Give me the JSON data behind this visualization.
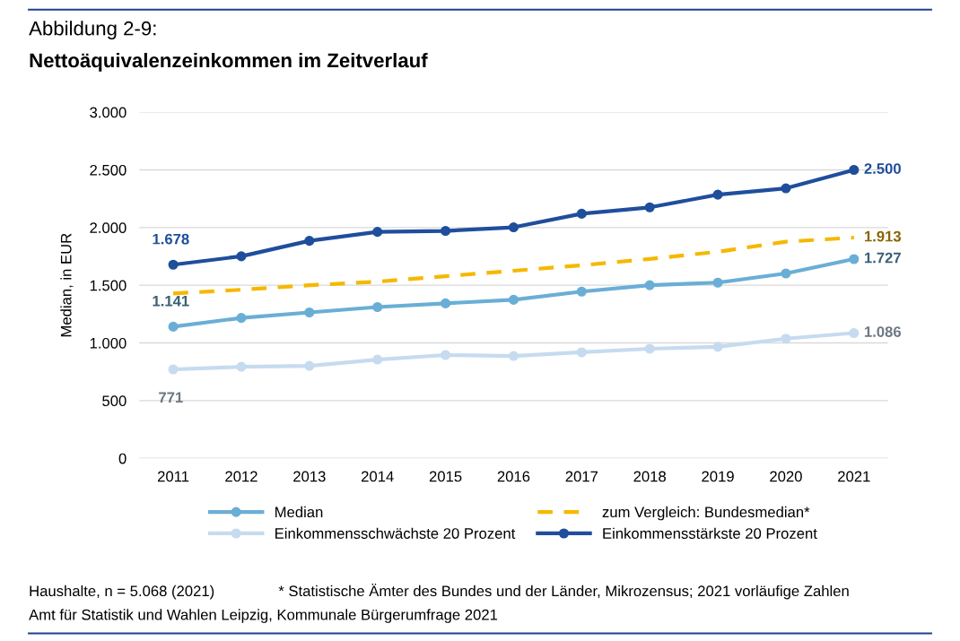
{
  "chart_data": {
    "type": "line",
    "title": "Abbildung 2-9:",
    "subtitle": "Nettoäquivalenzeinkommen im Zeitverlauf",
    "ylabel": "Median, in EUR",
    "categories": [
      "2011",
      "2012",
      "2013",
      "2014",
      "2015",
      "2016",
      "2017",
      "2018",
      "2019",
      "2020",
      "2021"
    ],
    "series": [
      {
        "name": "Median",
        "color": "#6aaed6",
        "marker": "circle",
        "values": [
          1141,
          1217,
          1264,
          1311,
          1343,
          1374,
          1445,
          1500,
          1523,
          1602,
          1727
        ],
        "value_labels": [
          "1.141",
          null,
          null,
          null,
          null,
          null,
          null,
          null,
          null,
          null,
          "1.727"
        ]
      },
      {
        "name": "zum Vergleich: Bundesmedian*",
        "color": "#f5b800",
        "marker": "none",
        "line_style": "dashed",
        "values": [
          1429,
          1461,
          1500,
          1531,
          1578,
          1626,
          1673,
          1728,
          1790,
          1877,
          1913
        ],
        "value_labels": [
          null,
          null,
          null,
          null,
          null,
          null,
          null,
          null,
          null,
          null,
          "1.913"
        ]
      },
      {
        "name": "Einkommensschwächste 20 Prozent",
        "color": "#c6dbef",
        "marker": "circle",
        "values": [
          771,
          793,
          801,
          856,
          895,
          887,
          919,
          950,
          966,
          1037,
          1086
        ],
        "value_labels": [
          "771",
          null,
          null,
          null,
          null,
          null,
          null,
          null,
          null,
          null,
          "1.086"
        ]
      },
      {
        "name": "Einkommensstärkste 20 Prozent",
        "color": "#1f4e9c",
        "marker": "circle",
        "values": [
          1678,
          1751,
          1885,
          1963,
          1971,
          2002,
          2120,
          2175,
          2285,
          2340,
          2500
        ],
        "value_labels": [
          "1.678",
          null,
          null,
          null,
          null,
          null,
          null,
          null,
          null,
          null,
          "2.500"
        ]
      }
    ],
    "ylim": [
      0,
      3000
    ],
    "yticks": [
      {
        "value": 0,
        "label": "0"
      },
      {
        "value": 500,
        "label": "500"
      },
      {
        "value": 1000,
        "label": "1.000"
      },
      {
        "value": 1500,
        "label": "1.500"
      },
      {
        "value": 2000,
        "label": "2.000"
      },
      {
        "value": 2500,
        "label": "2.500"
      },
      {
        "value": 3000,
        "label": "3.000"
      }
    ],
    "grid": "y",
    "legend": "bottom",
    "annotations": [
      "Haushalte, n = 5.068 (2021)",
      "* Statistische Ämter des Bundes und der Länder, Mikrozensus; 2021 vorläufige Zahlen",
      "Amt für Statistik und Wahlen Leipzig, Kommunale Bürgerumfrage 2021"
    ]
  }
}
